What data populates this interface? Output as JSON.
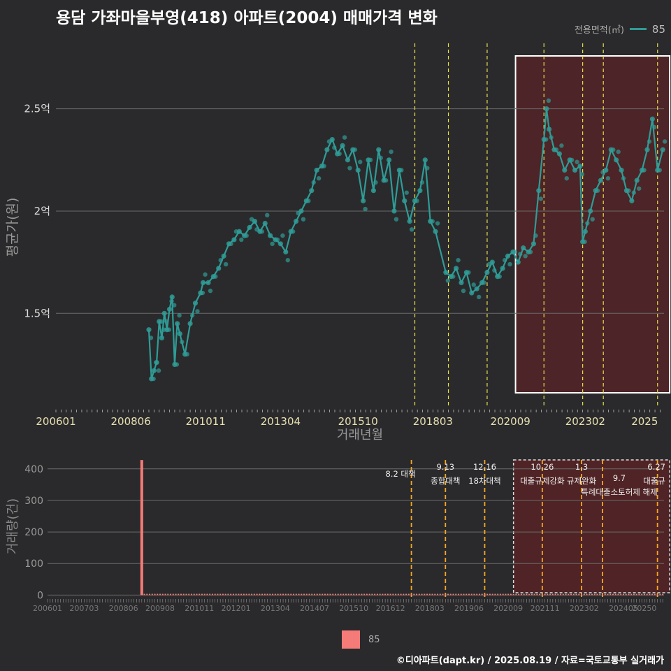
{
  "title": "용담 가좌마을부영(418) 아파트(2004) 매매가격 변화",
  "credit": "©디아파트(dapt.kr) / 2025.08.19 / 자료=국토교통부 실거래가",
  "colors": {
    "line": "#2f9c97",
    "bar": "#f47b78",
    "vline": "#e8e04a",
    "vline_bottom": "#f5a623",
    "highlight": "#5a2326"
  },
  "chart_data": [
    {
      "type": "line",
      "xlabel": "거래년월",
      "ylabel": "평균가(원)",
      "legend_title": "전용면적(㎡)",
      "legend_placement": "top-right",
      "x_ticks": [
        "200601",
        "200806",
        "201011",
        "201304",
        "201510",
        "201803",
        "202009",
        "202302",
        "2025"
      ],
      "y_ticks": [
        {
          "v": 1.5,
          "label": "1.5억"
        },
        {
          "v": 2.0,
          "label": "2억"
        },
        {
          "v": 2.5,
          "label": "2.5억"
        }
      ],
      "ylim": [
        1.05,
        2.82
      ],
      "xlim": [
        "2006-01",
        "2025-08"
      ],
      "grid": true,
      "highlight_range": [
        "2020-11",
        "2025-08"
      ],
      "policy_lines": [
        "2017-08",
        "2018-09",
        "2019-12",
        "2021-10",
        "2023-01",
        "2023-09",
        "2025-06"
      ],
      "series": [
        {
          "name": "85",
          "points": [
            [
              "2009-01",
              1.42
            ],
            [
              "2009-02",
              1.18
            ],
            [
              "2009-03",
              1.22
            ],
            [
              "2009-04",
              1.26
            ],
            [
              "2009-05",
              1.46
            ],
            [
              "2009-06",
              1.38
            ],
            [
              "2009-07",
              1.5
            ],
            [
              "2009-08",
              1.42
            ],
            [
              "2009-09",
              1.52
            ],
            [
              "2009-10",
              1.58
            ],
            [
              "2009-11",
              1.25
            ],
            [
              "2009-12",
              1.45
            ],
            [
              "2010-01",
              1.4
            ],
            [
              "2010-03",
              1.3
            ],
            [
              "2010-05",
              1.45
            ],
            [
              "2010-07",
              1.55
            ],
            [
              "2010-09",
              1.6
            ],
            [
              "2010-10",
              1.65
            ],
            [
              "2010-12",
              1.65
            ],
            [
              "2011-02",
              1.68
            ],
            [
              "2011-04",
              1.72
            ],
            [
              "2011-06",
              1.78
            ],
            [
              "2011-08",
              1.84
            ],
            [
              "2011-10",
              1.86
            ],
            [
              "2011-12",
              1.9
            ],
            [
              "2012-02",
              1.88
            ],
            [
              "2012-04",
              1.92
            ],
            [
              "2012-06",
              1.95
            ],
            [
              "2012-08",
              1.9
            ],
            [
              "2012-10",
              1.94
            ],
            [
              "2012-12",
              1.88
            ],
            [
              "2013-02",
              1.86
            ],
            [
              "2013-04",
              1.84
            ],
            [
              "2013-06",
              1.8
            ],
            [
              "2013-08",
              1.9
            ],
            [
              "2013-10",
              1.95
            ],
            [
              "2013-12",
              2.0
            ],
            [
              "2014-02",
              2.05
            ],
            [
              "2014-04",
              2.1
            ],
            [
              "2014-06",
              2.2
            ],
            [
              "2014-08",
              2.22
            ],
            [
              "2014-10",
              2.3
            ],
            [
              "2014-12",
              2.35
            ],
            [
              "2015-02",
              2.28
            ],
            [
              "2015-04",
              2.32
            ],
            [
              "2015-06",
              2.25
            ],
            [
              "2015-08",
              2.3
            ],
            [
              "2015-10",
              2.2
            ],
            [
              "2015-12",
              2.05
            ],
            [
              "2016-02",
              2.25
            ],
            [
              "2016-04",
              2.1
            ],
            [
              "2016-06",
              2.3
            ],
            [
              "2016-08",
              2.15
            ],
            [
              "2016-10",
              2.25
            ],
            [
              "2016-12",
              2.0
            ],
            [
              "2017-02",
              2.2
            ],
            [
              "2017-04",
              2.05
            ],
            [
              "2017-06",
              1.95
            ],
            [
              "2017-08",
              2.05
            ],
            [
              "2017-10",
              2.1
            ],
            [
              "2017-12",
              2.25
            ],
            [
              "2018-02",
              1.95
            ],
            [
              "2018-04",
              1.9
            ],
            [
              "2018-08",
              1.7
            ],
            [
              "2018-10",
              1.68
            ],
            [
              "2018-12",
              1.72
            ],
            [
              "2019-02",
              1.65
            ],
            [
              "2019-04",
              1.7
            ],
            [
              "2019-06",
              1.6
            ],
            [
              "2019-08",
              1.62
            ],
            [
              "2019-10",
              1.65
            ],
            [
              "2019-12",
              1.7
            ],
            [
              "2020-02",
              1.75
            ],
            [
              "2020-04",
              1.68
            ],
            [
              "2020-06",
              1.72
            ],
            [
              "2020-08",
              1.78
            ],
            [
              "2020-10",
              1.8
            ],
            [
              "2020-12",
              1.75
            ],
            [
              "2021-02",
              1.82
            ],
            [
              "2021-04",
              1.8
            ],
            [
              "2021-06",
              1.84
            ],
            [
              "2021-08",
              2.1
            ],
            [
              "2021-10",
              2.35
            ],
            [
              "2021-11",
              2.5
            ],
            [
              "2021-12",
              2.4
            ],
            [
              "2022-02",
              2.3
            ],
            [
              "2022-04",
              2.28
            ],
            [
              "2022-06",
              2.2
            ],
            [
              "2022-08",
              2.25
            ],
            [
              "2022-10",
              2.2
            ],
            [
              "2022-12",
              2.22
            ],
            [
              "2023-01",
              1.85
            ],
            [
              "2023-02",
              1.9
            ],
            [
              "2023-04",
              2.0
            ],
            [
              "2023-06",
              2.1
            ],
            [
              "2023-08",
              2.15
            ],
            [
              "2023-10",
              2.2
            ],
            [
              "2023-12",
              2.3
            ],
            [
              "2024-02",
              2.25
            ],
            [
              "2024-04",
              2.2
            ],
            [
              "2024-06",
              2.1
            ],
            [
              "2024-08",
              2.05
            ],
            [
              "2024-10",
              2.15
            ],
            [
              "2024-12",
              2.2
            ],
            [
              "2025-02",
              2.3
            ],
            [
              "2025-04",
              2.45
            ],
            [
              "2025-06",
              2.2
            ],
            [
              "2025-08",
              2.3
            ]
          ]
        }
      ]
    },
    {
      "type": "bar",
      "xlabel": "",
      "ylabel": "거래량(건)",
      "x_ticks": [
        "200601",
        "200703",
        "200806",
        "200908",
        "201011",
        "201201",
        "201304",
        "201407",
        "201510",
        "201612",
        "201803",
        "201906",
        "202009",
        "202111",
        "202302",
        "202405",
        "20250"
      ],
      "y_ticks": [
        0,
        100,
        200,
        300,
        400
      ],
      "ylim": [
        -8,
        435
      ],
      "spike": {
        "x": "2009-01",
        "value": 428
      },
      "baseline_value": 4,
      "policy_labels": [
        {
          "x": "2017-08",
          "label": "8.2 대책"
        },
        {
          "x": "2018-09",
          "label": "9.13"
        },
        {
          "x": "2018-09",
          "label": "종합대책"
        },
        {
          "x": "2019-12",
          "label": "12.16"
        },
        {
          "x": "2019-12",
          "label": "18차대책"
        },
        {
          "x": "2021-10",
          "label": "10.26"
        },
        {
          "x": "2021-10",
          "label": "대출규제강화"
        },
        {
          "x": "2023-01",
          "label": "1.3"
        },
        {
          "x": "2023-01",
          "label": "규제완화"
        },
        {
          "x": "2023-09",
          "label": "9.7"
        },
        {
          "x": "2023-09",
          "label": "특례대출소토허제 해제"
        },
        {
          "x": "2025-06",
          "label": "6.27"
        },
        {
          "x": "2025-06",
          "label": "대출규"
        }
      ],
      "legend": {
        "name": "85",
        "placement": "bottom"
      }
    }
  ]
}
